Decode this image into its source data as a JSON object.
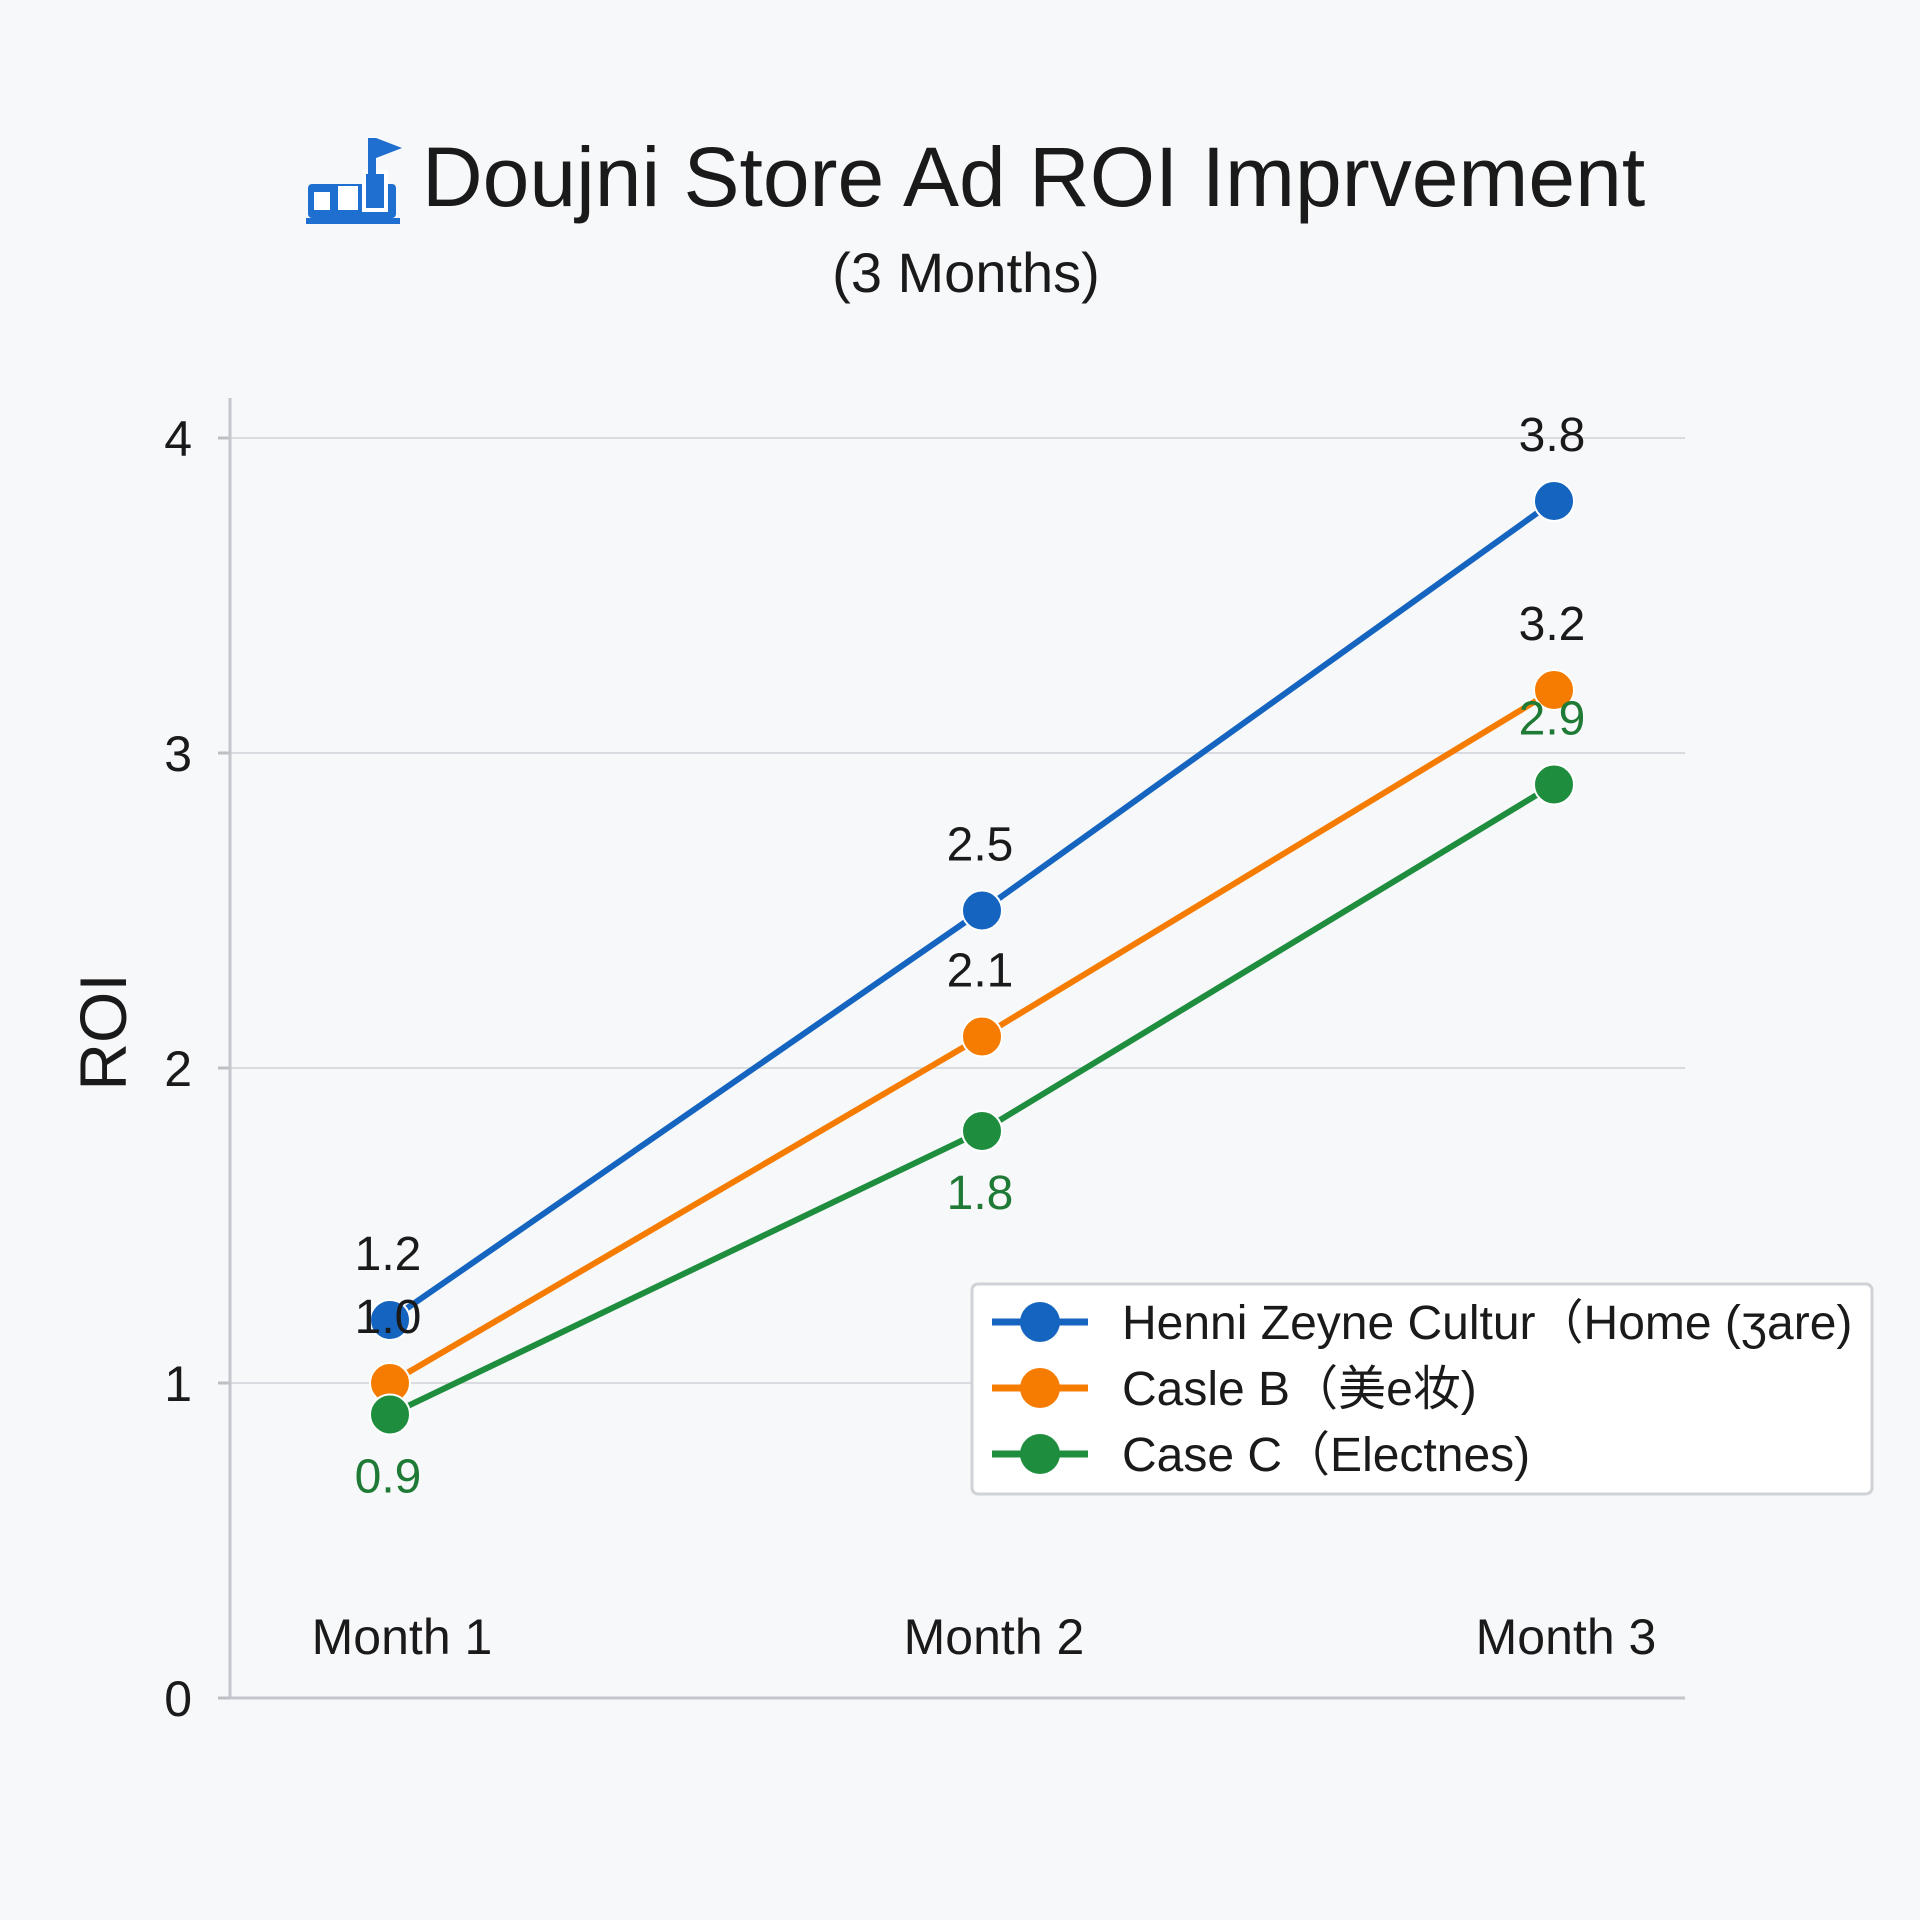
{
  "title": "Doujni Store Ad ROI Imprvement",
  "subtitle": "(3 Months)",
  "title_icon": "bar-chart-flag-icon",
  "chart_data": {
    "type": "line",
    "title": "Doujni Store Ad ROI Imprvement",
    "subtitle": "(3 Months)",
    "xlabel": "",
    "ylabel": "ROI",
    "categories": [
      "Month 1",
      "Month 2",
      "Month 3"
    ],
    "ylim": [
      0,
      4
    ],
    "yticks": [
      "0",
      "1",
      "2",
      "3",
      "4"
    ],
    "grid": true,
    "legend_position": "bottom-right",
    "series": [
      {
        "name": "Henni Zeyne Cultur（Home (ʒare)",
        "color": "#1565c0",
        "values": [
          1.2,
          2.5,
          3.8
        ],
        "labels": [
          "1.2",
          "2.5",
          "3.8"
        ],
        "label_color": "#1a1a1a",
        "label_position": [
          "above",
          "above",
          "above"
        ]
      },
      {
        "name": "Casle B（美e妆)",
        "color": "#f57c00",
        "values": [
          1.0,
          2.1,
          3.2
        ],
        "labels": [
          "1.0",
          "2.1",
          "3.2"
        ],
        "label_color": "#1a1a1a",
        "label_position": [
          "above",
          "above",
          "above"
        ]
      },
      {
        "name": "Case C（Electnes)",
        "color": "#1e8e3e",
        "values": [
          0.9,
          1.8,
          2.9
        ],
        "labels": [
          "0.9",
          "1.8",
          "2.9"
        ],
        "label_color": "#1e7a35",
        "label_position": [
          "below",
          "below",
          "above"
        ]
      }
    ]
  }
}
